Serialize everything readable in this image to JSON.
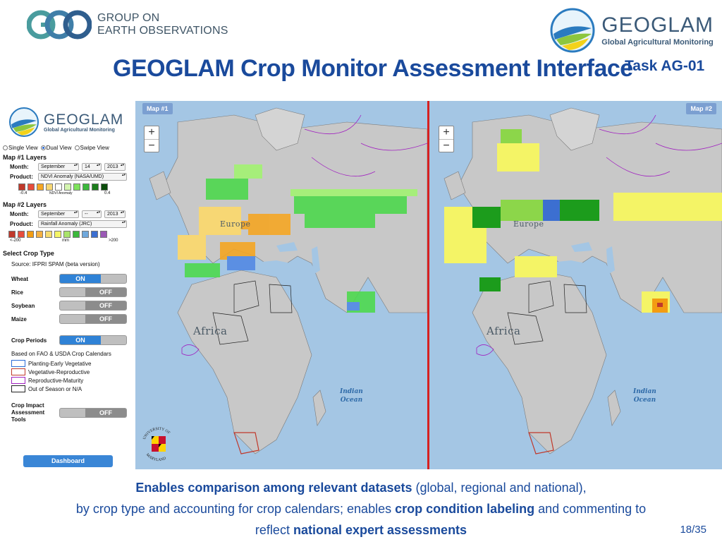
{
  "header": {
    "geo_logo_line1": "GROUP ON",
    "geo_logo_line2": "EARTH OBSERVATIONS",
    "geoglam_name": "GEOGLAM",
    "geoglam_tagline": "Global Agricultural Monitoring",
    "title": "GEOGLAM Crop Monitor Assessment Interface",
    "task": "Task AG-01"
  },
  "sidebar": {
    "logo_name": "GEOGLAM",
    "logo_tagline": "Global Agricultural Monitoring",
    "views": [
      {
        "label": "Single View",
        "selected": false
      },
      {
        "label": "Dual View",
        "selected": true
      },
      {
        "label": "Swipe View",
        "selected": false
      }
    ],
    "map1": {
      "title": "Map #1 Layers",
      "month_label": "Month:",
      "month": "September",
      "day": "14",
      "year": "2013",
      "product_label": "Product:",
      "product": "NDVI Anomaly (NASA/UMD)",
      "legend_colors": [
        "#c0392b",
        "#e74c3c",
        "#f5a623",
        "#f7d774",
        "#ffffff",
        "#d4f5b0",
        "#7ee35c",
        "#3cb83c",
        "#1c7d1c",
        "#0b4d0b"
      ],
      "legend_min": "-0.4",
      "legend_mid": "NDVI Anomaly",
      "legend_max": "0.4"
    },
    "map2": {
      "title": "Map #2 Layers",
      "month_label": "Month:",
      "month": "September",
      "day": "--",
      "year": "2013",
      "product_label": "Product:",
      "product": "Rainfall Anomaly (JRC)",
      "legend_colors": [
        "#c0392b",
        "#e74c3c",
        "#f39c12",
        "#f5b041",
        "#f7dc6f",
        "#f4f466",
        "#a9e36a",
        "#3cb83c",
        "#6fa8dc",
        "#3c6fd1",
        "#9b59b6"
      ],
      "legend_min": "<-200",
      "legend_mid": "mm",
      "legend_max": ">200"
    },
    "crop_section": {
      "title": "Select Crop Type",
      "source": "Source: IFPRI SPAM (beta version)",
      "crops": [
        {
          "label": "Wheat",
          "state": "ON"
        },
        {
          "label": "Rice",
          "state": "OFF"
        },
        {
          "label": "Soybean",
          "state": "OFF"
        },
        {
          "label": "Maize",
          "state": "OFF"
        }
      ]
    },
    "crop_periods": {
      "label": "Crop Periods",
      "state": "ON",
      "note": "Based on FAO & USDA Crop Calendars",
      "items": [
        {
          "label": "Planting-Early Vegetative",
          "color": "#2a6bd6"
        },
        {
          "label": "Vegetative-Reproductive",
          "color": "#c0392b"
        },
        {
          "label": "Reproductive-Maturity",
          "color": "#a020c0"
        },
        {
          "label": "Out of Season or N/A",
          "color": "#222222"
        }
      ]
    },
    "impact_tools": {
      "label_line1": "Crop Impact",
      "label_line2": "Assessment",
      "label_line3": "Tools",
      "state": "OFF"
    },
    "dashboard_label": "Dashboard"
  },
  "maps": {
    "map1_label": "Map #1",
    "map2_label": "Map #2",
    "zoom_in": "+",
    "zoom_out": "−",
    "region_africa": "Africa",
    "region_europe": "Europe",
    "ocean_line1": "Indian",
    "ocean_line2": "Ocean"
  },
  "umd": {
    "top_text": "UNIVERSITY OF",
    "bottom_text": "MARYLAND"
  },
  "caption": {
    "l1_bold": "Enables comparison among relevant datasets",
    "l1_rest": " (global, regional and national),",
    "l2_start": "by crop type and accounting for crop calendars; enables ",
    "l2_bold": "crop condition labeling",
    "l2_end": " and commenting to",
    "l3_start": "reflect ",
    "l3_bold": "national expert assessments"
  },
  "page_number": "18/35"
}
